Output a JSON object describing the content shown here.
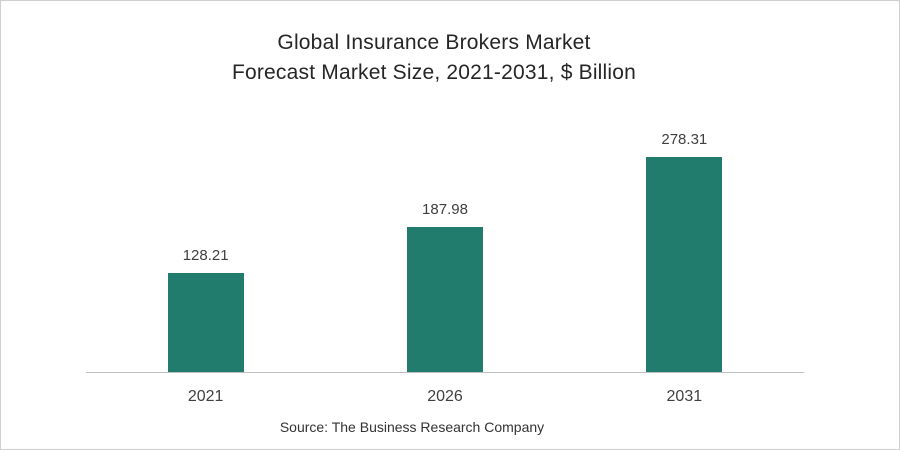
{
  "title": {
    "line1": "Global Insurance Brokers Market",
    "line2": "Forecast Market Size, 2021-2031, $ Billion"
  },
  "source": "Source: The Business Research Company",
  "colors": {
    "bar": "#217C6D",
    "title_text": "#262626",
    "label_text": "#404040",
    "axis_line": "#BFBFBF",
    "frame_border": "#CFCFCF",
    "background": "#FFFFFF"
  },
  "chart_data": {
    "type": "bar",
    "title": "Global Insurance Brokers Market Forecast Market Size, 2021-2031, $ Billion",
    "categories": [
      "2021",
      "2026",
      "2031"
    ],
    "values": [
      128.21,
      187.98,
      278.31
    ],
    "value_labels": [
      "128.21",
      "187.98",
      "278.31"
    ],
    "series": [
      {
        "name": "Market Size ($ Billion)",
        "values": [
          128.21,
          187.98,
          278.31
        ]
      }
    ],
    "xlabel": "",
    "ylabel": "",
    "ylim": [
      0,
      300
    ],
    "grid": false,
    "legend": false,
    "bar_color": "#217C6D",
    "source": "Source: The Business Research Company"
  }
}
